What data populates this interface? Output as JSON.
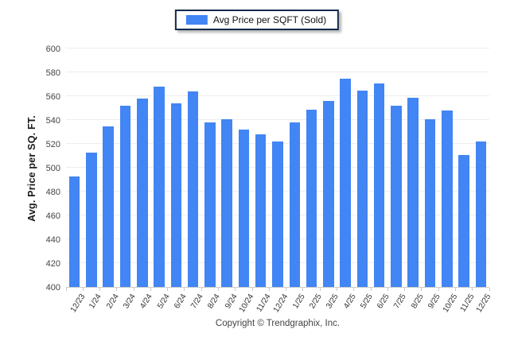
{
  "legend": {
    "label": "Avg Price per SQFT (Sold)",
    "swatch_color": "#4285f4"
  },
  "chart_data": {
    "type": "bar",
    "title": "",
    "xlabel": "",
    "ylabel": "Avg. Price per SQ. FT.",
    "ylim": [
      400,
      600
    ],
    "yticks": [
      400,
      420,
      440,
      460,
      480,
      500,
      520,
      540,
      560,
      580,
      600
    ],
    "grid": true,
    "legend_position": "top-center",
    "bar_color": "#4285f4",
    "series_name": "Avg Price per SQFT (Sold)",
    "categories": [
      "12/23",
      "1/24",
      "2/24",
      "3/24",
      "4/24",
      "5/24",
      "6/24",
      "7/24",
      "8/24",
      "9/24",
      "10/24",
      "11/24",
      "12/24",
      "1/25",
      "2/25",
      "3/25",
      "4/25",
      "5/25",
      "6/25",
      "7/25",
      "8/25",
      "9/25",
      "10/25",
      "11/25",
      "12/25"
    ],
    "values": [
      493,
      513,
      535,
      552,
      558,
      568,
      554,
      564,
      538,
      541,
      532,
      528,
      522,
      538,
      549,
      556,
      575,
      565,
      571,
      552,
      559,
      541,
      548,
      511,
      522
    ]
  },
  "footer": {
    "copyright": "Copyright © Trendgraphix, Inc."
  }
}
